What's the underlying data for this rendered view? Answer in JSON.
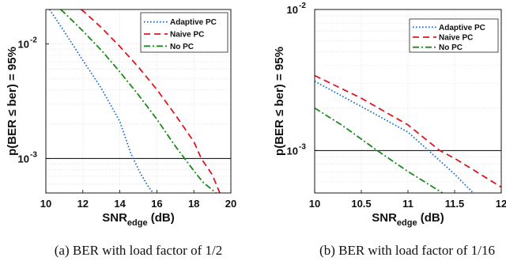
{
  "chart_data": [
    {
      "type": "line",
      "caption": "(a) BER with load factor of 1/2",
      "xlabel_main": "SNR",
      "xlabel_sub": "edge",
      "xlabel_unit": "(dB)",
      "ylabel": "p(BER ≤ ber) = 95%",
      "xlim": [
        10,
        20
      ],
      "ylim": [
        0.0005,
        0.02
      ],
      "yscale": "log",
      "grid": true,
      "legend_placement": "top-right",
      "x_ticks": [
        "10",
        "12",
        "14",
        "16",
        "18",
        "20"
      ],
      "y_tick_bases": [
        "10",
        "10"
      ],
      "y_tick_exps": [
        "-2",
        "-3"
      ],
      "y_tick_values": [
        0.01,
        0.001
      ],
      "threshold": 0.001,
      "series": [
        {
          "name": "Adaptive PC",
          "color": "#1f6fc5",
          "dash": "dotted",
          "x": [
            10.2,
            11,
            12,
            13,
            14,
            14.6,
            15.1,
            15.5,
            15.8
          ],
          "y": [
            0.02,
            0.0128,
            0.0072,
            0.0041,
            0.0021,
            0.0011,
            0.00075,
            0.00058,
            0.0005
          ]
        },
        {
          "name": "Naive PC",
          "color": "#e0141e",
          "dash": "dashed",
          "x": [
            11.9,
            12,
            13,
            14,
            15,
            16,
            17,
            18,
            18.4,
            19,
            19.4
          ],
          "y": [
            0.02,
            0.0195,
            0.0139,
            0.0095,
            0.0063,
            0.004,
            0.0024,
            0.0014,
            0.001,
            0.00072,
            0.0005
          ]
        },
        {
          "name": "No PC",
          "color": "#1a8a1a",
          "dash": "dashdot",
          "x": [
            10.8,
            11,
            12,
            13,
            14,
            15,
            16,
            17,
            17.5,
            18,
            18.5,
            19.2
          ],
          "y": [
            0.02,
            0.0187,
            0.013,
            0.0088,
            0.0057,
            0.0036,
            0.0022,
            0.00128,
            0.001,
            0.00078,
            0.00062,
            0.0005
          ]
        }
      ]
    },
    {
      "type": "line",
      "caption": "(b) BER with load factor of 1/16",
      "xlabel_main": "SNR",
      "xlabel_sub": "edge",
      "xlabel_unit": "(dB)",
      "ylabel": "p(BER ≤ ber) = 95%",
      "xlim": [
        10,
        12
      ],
      "ylim": [
        0.0005,
        0.01
      ],
      "yscale": "log",
      "grid": true,
      "legend_placement": "top-right",
      "x_ticks": [
        "10",
        "10.5",
        "11",
        "11.5",
        "12"
      ],
      "y_tick_bases": [
        "10",
        "10"
      ],
      "y_tick_exps": [
        "-2",
        "-3"
      ],
      "y_tick_values": [
        0.01,
        0.001
      ],
      "threshold": 0.001,
      "series": [
        {
          "name": "Adaptive PC",
          "color": "#1f6fc5",
          "dash": "dotted",
          "x": [
            10.0,
            10.5,
            11.0,
            11.22,
            11.5,
            11.7
          ],
          "y": [
            0.0031,
            0.00205,
            0.00135,
            0.001,
            0.00068,
            0.0005
          ]
        },
        {
          "name": "Naive PC",
          "color": "#e0141e",
          "dash": "dashed",
          "x": [
            10.0,
            10.5,
            11.0,
            11.34,
            11.5,
            12.0
          ],
          "y": [
            0.0034,
            0.00235,
            0.00152,
            0.001,
            0.00088,
            0.00055
          ]
        },
        {
          "name": "No PC",
          "color": "#1a8a1a",
          "dash": "dashdot",
          "x": [
            10.0,
            10.3,
            10.67,
            11.0,
            11.37
          ],
          "y": [
            0.002,
            0.0015,
            0.001,
            0.00071,
            0.0005
          ]
        }
      ]
    }
  ]
}
